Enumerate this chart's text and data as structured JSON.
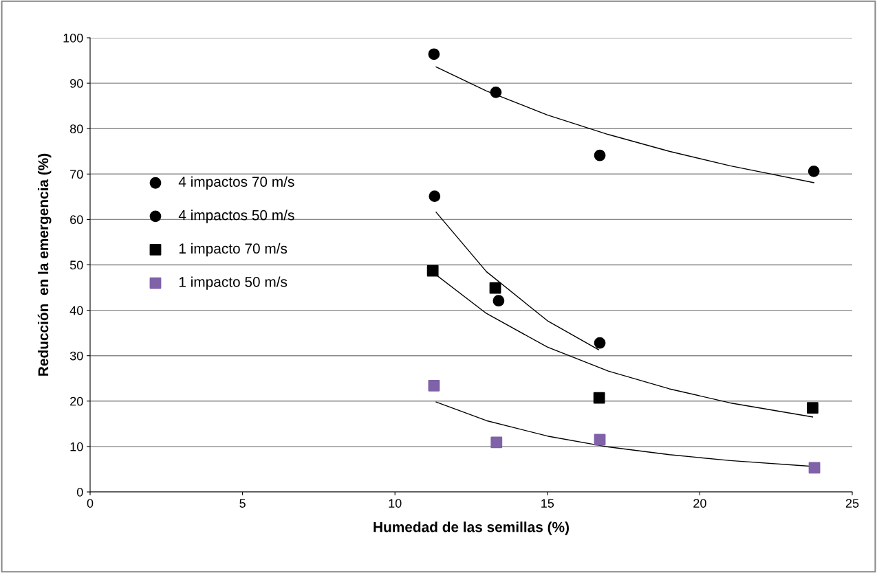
{
  "chart_data": {
    "type": "scatter",
    "xlabel": "Humedad de las semillas (%)",
    "ylabel": "Reducción  en la emergencia (%)",
    "xlim": [
      0,
      25
    ],
    "xticks": [
      0,
      5,
      10,
      15,
      20,
      25
    ],
    "ylim": [
      0,
      100
    ],
    "yticks": [
      0,
      10,
      20,
      30,
      40,
      50,
      60,
      70,
      80,
      90,
      100
    ],
    "grid": "y",
    "legend": "left",
    "series": [
      {
        "name": "4 impactos 70 m/s",
        "color": "#000000",
        "marker": "circle",
        "x": [
          11.28,
          13.31,
          16.72,
          23.74
        ],
        "values": [
          96.4,
          88.0,
          74.1,
          70.6
        ]
      },
      {
        "name": "4 impactos 50 m/s",
        "color": "#000000",
        "marker": "circle",
        "x": [
          11.3,
          13.4,
          16.72
        ],
        "values": [
          65.1,
          42.1,
          32.8
        ]
      },
      {
        "name": "1 impacto 70 m/s",
        "color": "#000000",
        "marker": "square",
        "x": [
          11.24,
          13.29,
          16.7,
          23.7
        ],
        "values": [
          48.7,
          44.9,
          20.7,
          18.5
        ]
      },
      {
        "name": "1 impacto 50 m/s",
        "color": "#7f62a8",
        "marker": "square",
        "x": [
          11.28,
          13.33,
          16.72,
          23.76
        ],
        "values": [
          23.4,
          10.9,
          11.5,
          5.3
        ]
      },
      {
        "type": "line",
        "color": "#000000",
        "x": [
          11.35,
          13,
          15,
          17,
          19,
          21,
          23.74
        ],
        "values": [
          93.6,
          88.3,
          83.0,
          78.7,
          75.0,
          71.8,
          68.1
        ]
      },
      {
        "type": "line",
        "color": "#000000",
        "x": [
          11.35,
          13,
          15,
          16.68
        ],
        "values": [
          61.6,
          48.5,
          37.7,
          31.3
        ]
      },
      {
        "type": "line",
        "color": "#000000",
        "x": [
          11.35,
          13,
          15,
          17,
          19,
          21,
          23.7
        ],
        "values": [
          47.8,
          39.3,
          31.9,
          26.6,
          22.7,
          19.6,
          16.5
        ]
      },
      {
        "type": "line",
        "color": "#000000",
        "x": [
          11.35,
          13,
          15,
          17,
          19,
          21,
          23.74
        ],
        "values": [
          19.8,
          15.7,
          12.3,
          9.9,
          8.2,
          6.9,
          5.6
        ]
      }
    ]
  }
}
